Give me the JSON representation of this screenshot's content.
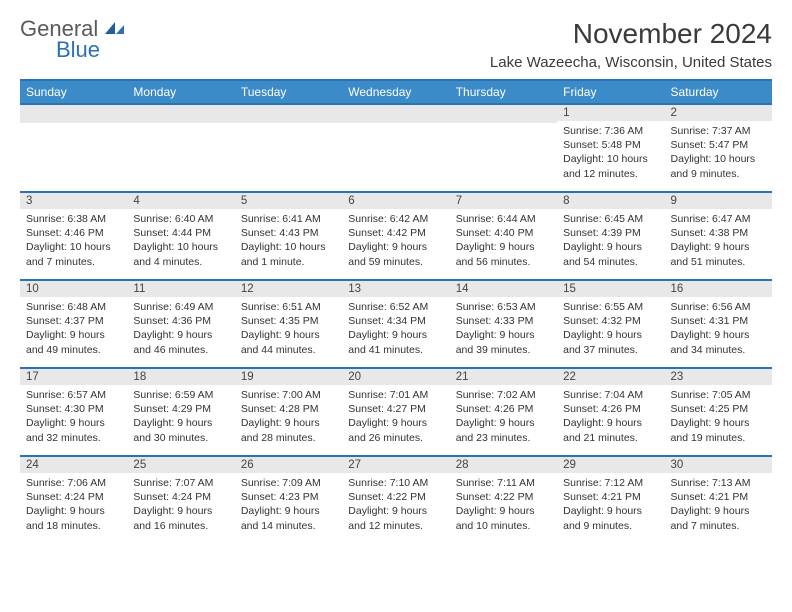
{
  "brand": {
    "general": "General",
    "blue": "Blue"
  },
  "title": "November 2024",
  "location": "Lake Wazeecha, Wisconsin, United States",
  "colors": {
    "accent": "#3b8bc8",
    "rule": "#2a72b5",
    "daybg": "#e8e8e8"
  },
  "days_of_week": [
    "Sunday",
    "Monday",
    "Tuesday",
    "Wednesday",
    "Thursday",
    "Friday",
    "Saturday"
  ],
  "weeks": [
    [
      null,
      null,
      null,
      null,
      null,
      {
        "n": "1",
        "sr": "Sunrise: 7:36 AM",
        "ss": "Sunset: 5:48 PM",
        "dl1": "Daylight: 10 hours",
        "dl2": "and 12 minutes."
      },
      {
        "n": "2",
        "sr": "Sunrise: 7:37 AM",
        "ss": "Sunset: 5:47 PM",
        "dl1": "Daylight: 10 hours",
        "dl2": "and 9 minutes."
      }
    ],
    [
      {
        "n": "3",
        "sr": "Sunrise: 6:38 AM",
        "ss": "Sunset: 4:46 PM",
        "dl1": "Daylight: 10 hours",
        "dl2": "and 7 minutes."
      },
      {
        "n": "4",
        "sr": "Sunrise: 6:40 AM",
        "ss": "Sunset: 4:44 PM",
        "dl1": "Daylight: 10 hours",
        "dl2": "and 4 minutes."
      },
      {
        "n": "5",
        "sr": "Sunrise: 6:41 AM",
        "ss": "Sunset: 4:43 PM",
        "dl1": "Daylight: 10 hours",
        "dl2": "and 1 minute."
      },
      {
        "n": "6",
        "sr": "Sunrise: 6:42 AM",
        "ss": "Sunset: 4:42 PM",
        "dl1": "Daylight: 9 hours",
        "dl2": "and 59 minutes."
      },
      {
        "n": "7",
        "sr": "Sunrise: 6:44 AM",
        "ss": "Sunset: 4:40 PM",
        "dl1": "Daylight: 9 hours",
        "dl2": "and 56 minutes."
      },
      {
        "n": "8",
        "sr": "Sunrise: 6:45 AM",
        "ss": "Sunset: 4:39 PM",
        "dl1": "Daylight: 9 hours",
        "dl2": "and 54 minutes."
      },
      {
        "n": "9",
        "sr": "Sunrise: 6:47 AM",
        "ss": "Sunset: 4:38 PM",
        "dl1": "Daylight: 9 hours",
        "dl2": "and 51 minutes."
      }
    ],
    [
      {
        "n": "10",
        "sr": "Sunrise: 6:48 AM",
        "ss": "Sunset: 4:37 PM",
        "dl1": "Daylight: 9 hours",
        "dl2": "and 49 minutes."
      },
      {
        "n": "11",
        "sr": "Sunrise: 6:49 AM",
        "ss": "Sunset: 4:36 PM",
        "dl1": "Daylight: 9 hours",
        "dl2": "and 46 minutes."
      },
      {
        "n": "12",
        "sr": "Sunrise: 6:51 AM",
        "ss": "Sunset: 4:35 PM",
        "dl1": "Daylight: 9 hours",
        "dl2": "and 44 minutes."
      },
      {
        "n": "13",
        "sr": "Sunrise: 6:52 AM",
        "ss": "Sunset: 4:34 PM",
        "dl1": "Daylight: 9 hours",
        "dl2": "and 41 minutes."
      },
      {
        "n": "14",
        "sr": "Sunrise: 6:53 AM",
        "ss": "Sunset: 4:33 PM",
        "dl1": "Daylight: 9 hours",
        "dl2": "and 39 minutes."
      },
      {
        "n": "15",
        "sr": "Sunrise: 6:55 AM",
        "ss": "Sunset: 4:32 PM",
        "dl1": "Daylight: 9 hours",
        "dl2": "and 37 minutes."
      },
      {
        "n": "16",
        "sr": "Sunrise: 6:56 AM",
        "ss": "Sunset: 4:31 PM",
        "dl1": "Daylight: 9 hours",
        "dl2": "and 34 minutes."
      }
    ],
    [
      {
        "n": "17",
        "sr": "Sunrise: 6:57 AM",
        "ss": "Sunset: 4:30 PM",
        "dl1": "Daylight: 9 hours",
        "dl2": "and 32 minutes."
      },
      {
        "n": "18",
        "sr": "Sunrise: 6:59 AM",
        "ss": "Sunset: 4:29 PM",
        "dl1": "Daylight: 9 hours",
        "dl2": "and 30 minutes."
      },
      {
        "n": "19",
        "sr": "Sunrise: 7:00 AM",
        "ss": "Sunset: 4:28 PM",
        "dl1": "Daylight: 9 hours",
        "dl2": "and 28 minutes."
      },
      {
        "n": "20",
        "sr": "Sunrise: 7:01 AM",
        "ss": "Sunset: 4:27 PM",
        "dl1": "Daylight: 9 hours",
        "dl2": "and 26 minutes."
      },
      {
        "n": "21",
        "sr": "Sunrise: 7:02 AM",
        "ss": "Sunset: 4:26 PM",
        "dl1": "Daylight: 9 hours",
        "dl2": "and 23 minutes."
      },
      {
        "n": "22",
        "sr": "Sunrise: 7:04 AM",
        "ss": "Sunset: 4:26 PM",
        "dl1": "Daylight: 9 hours",
        "dl2": "and 21 minutes."
      },
      {
        "n": "23",
        "sr": "Sunrise: 7:05 AM",
        "ss": "Sunset: 4:25 PM",
        "dl1": "Daylight: 9 hours",
        "dl2": "and 19 minutes."
      }
    ],
    [
      {
        "n": "24",
        "sr": "Sunrise: 7:06 AM",
        "ss": "Sunset: 4:24 PM",
        "dl1": "Daylight: 9 hours",
        "dl2": "and 18 minutes."
      },
      {
        "n": "25",
        "sr": "Sunrise: 7:07 AM",
        "ss": "Sunset: 4:24 PM",
        "dl1": "Daylight: 9 hours",
        "dl2": "and 16 minutes."
      },
      {
        "n": "26",
        "sr": "Sunrise: 7:09 AM",
        "ss": "Sunset: 4:23 PM",
        "dl1": "Daylight: 9 hours",
        "dl2": "and 14 minutes."
      },
      {
        "n": "27",
        "sr": "Sunrise: 7:10 AM",
        "ss": "Sunset: 4:22 PM",
        "dl1": "Daylight: 9 hours",
        "dl2": "and 12 minutes."
      },
      {
        "n": "28",
        "sr": "Sunrise: 7:11 AM",
        "ss": "Sunset: 4:22 PM",
        "dl1": "Daylight: 9 hours",
        "dl2": "and 10 minutes."
      },
      {
        "n": "29",
        "sr": "Sunrise: 7:12 AM",
        "ss": "Sunset: 4:21 PM",
        "dl1": "Daylight: 9 hours",
        "dl2": "and 9 minutes."
      },
      {
        "n": "30",
        "sr": "Sunrise: 7:13 AM",
        "ss": "Sunset: 4:21 PM",
        "dl1": "Daylight: 9 hours",
        "dl2": "and 7 minutes."
      }
    ]
  ]
}
